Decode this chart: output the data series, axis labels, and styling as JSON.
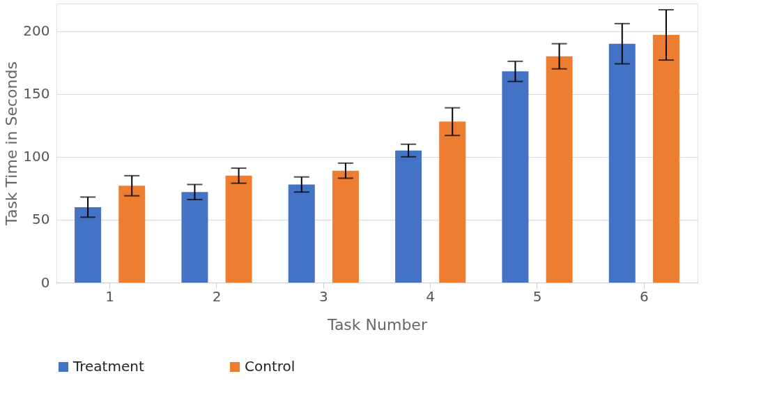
{
  "chart_data": {
    "type": "bar",
    "xlabel": "Task Number",
    "ylabel": "Task Time in Seconds",
    "categories": [
      "1",
      "2",
      "3",
      "4",
      "5",
      "6"
    ],
    "series": [
      {
        "name": "Treatment",
        "color": "#4472c4",
        "values": [
          60,
          72,
          78,
          105,
          168,
          190
        ],
        "errors": [
          8,
          6,
          6,
          5,
          8,
          16
        ]
      },
      {
        "name": "Control",
        "color": "#ed7d31",
        "values": [
          77,
          85,
          89,
          128,
          180,
          197
        ],
        "errors": [
          8,
          6,
          6,
          11,
          10,
          20
        ]
      }
    ],
    "ylim": [
      0,
      222
    ],
    "yticks": [
      0,
      50,
      100,
      150,
      200
    ],
    "grid": "y",
    "legend": "bottom"
  }
}
